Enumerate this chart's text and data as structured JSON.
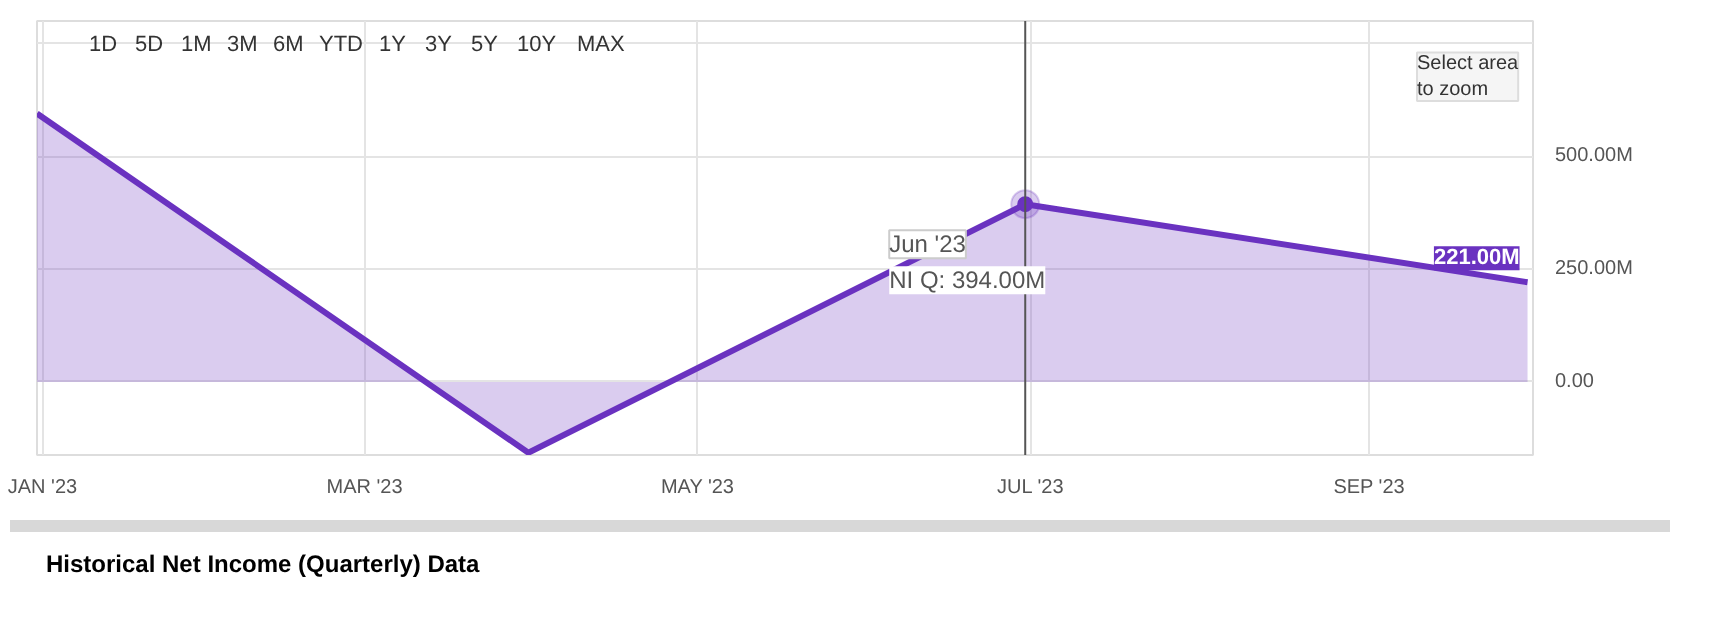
{
  "chart_data": {
    "type": "area",
    "x": [
      "2022-12-31",
      "2023-03-31",
      "2023-06-30",
      "2023-09-30"
    ],
    "series": [
      {
        "color": "#6a32c0",
        "values": [
          595,
          -157,
          394,
          221
        ],
        "value_labels": [
          null,
          null,
          null,
          "221.00M"
        ]
      }
    ],
    "xlim": [
      "2022-12-31",
      "2023-10-01"
    ],
    "xticks": [
      {
        "value": "2023-01-01",
        "label": "JAN '23"
      },
      {
        "value": "2023-03-01",
        "label": "MAR '23"
      },
      {
        "value": "2023-05-01",
        "label": "MAY '23"
      },
      {
        "value": "2023-07-01",
        "label": "JUL '23"
      },
      {
        "value": "2023-09-01",
        "label": "SEP '23"
      }
    ],
    "ylim": [
      -162,
      800
    ],
    "yticks": [
      {
        "value": 0,
        "label": "0.00"
      },
      {
        "value": 250,
        "label": "250.00M"
      },
      {
        "value": 500,
        "label": "500.00M"
      },
      {
        "value": 750,
        "label": null
      }
    ],
    "grid": true,
    "ref_lines": [
      {
        "axis": "x",
        "value": "2023-06-30",
        "label": null,
        "color": "#555555"
      }
    ],
    "annotations": [
      {
        "text": "Jun '23",
        "x": "2023-06-30",
        "y": 394
      },
      {
        "text": "NI Q: 394.00M",
        "x": "2023-06-30",
        "y": 394
      },
      "1D",
      "5D",
      "1M",
      "3M",
      "6M",
      "YTD",
      "1Y",
      "3Y",
      "5Y",
      "10Y",
      "MAX",
      "Select area\nto zoom",
      "Historical Net Income (Quarterly) Data"
    ]
  }
}
